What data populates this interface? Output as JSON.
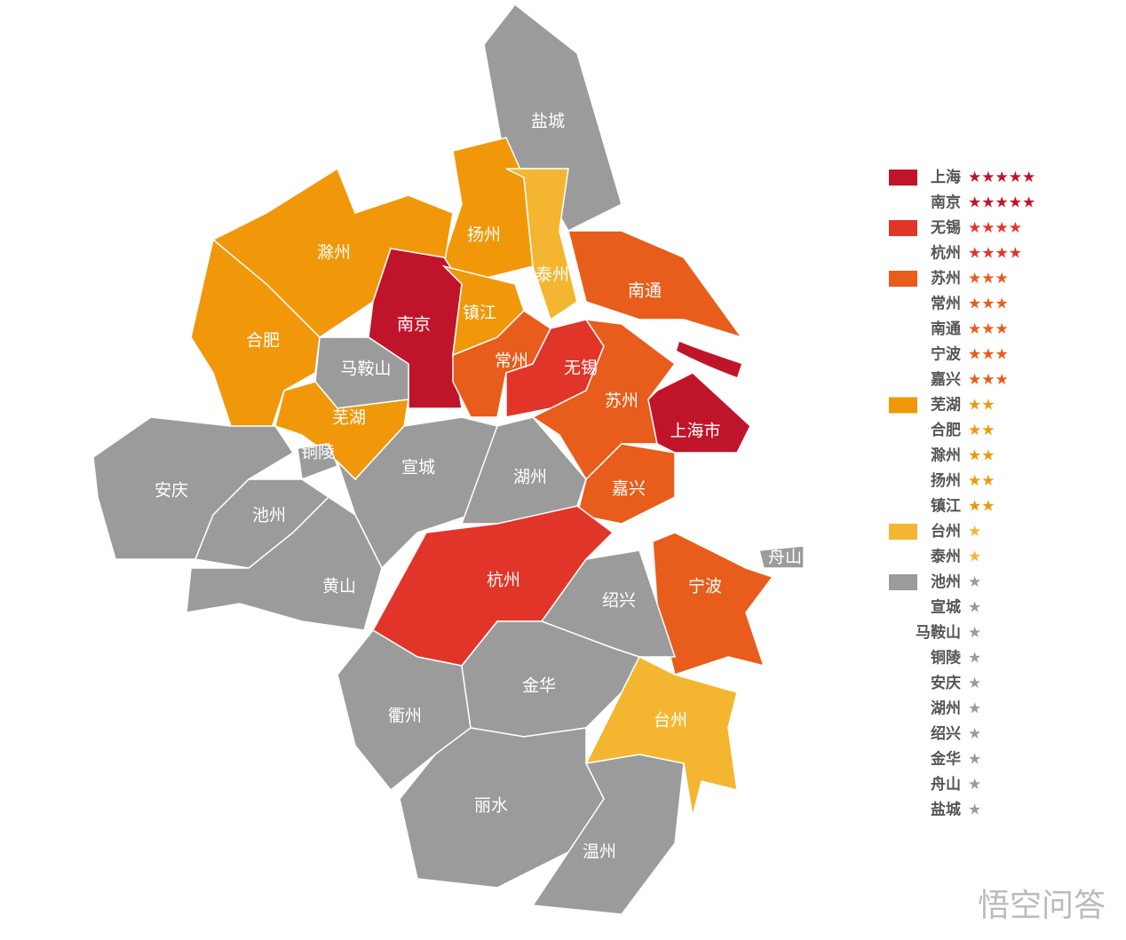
{
  "map": {
    "regions": [
      {
        "name": "盐城",
        "color": "#9b9b9b"
      },
      {
        "name": "扬州",
        "color": "#f0980a"
      },
      {
        "name": "泰州",
        "color": "#f4b630"
      },
      {
        "name": "南通",
        "color": "#e85d1c"
      },
      {
        "name": "滁州",
        "color": "#f0980a"
      },
      {
        "name": "合肥",
        "color": "#f0980a"
      },
      {
        "name": "南京",
        "color": "#c0142a"
      },
      {
        "name": "镇江",
        "color": "#f0980a"
      },
      {
        "name": "马鞍山",
        "color": "#9b9b9b"
      },
      {
        "name": "常州",
        "color": "#e85d1c"
      },
      {
        "name": "无锡",
        "color": "#e2352a"
      },
      {
        "name": "苏州",
        "color": "#e85d1c"
      },
      {
        "name": "上海市",
        "color": "#c0142a"
      },
      {
        "name": "芜湖",
        "color": "#f0980a"
      },
      {
        "name": "铜陵",
        "color": "#9b9b9b"
      },
      {
        "name": "宣城",
        "color": "#9b9b9b"
      },
      {
        "name": "湖州",
        "color": "#9b9b9b"
      },
      {
        "name": "嘉兴",
        "color": "#e85d1c"
      },
      {
        "name": "安庆",
        "color": "#9b9b9b"
      },
      {
        "name": "池州",
        "color": "#9b9b9b"
      },
      {
        "name": "黄山",
        "color": "#9b9b9b"
      },
      {
        "name": "杭州",
        "color": "#e2352a"
      },
      {
        "name": "宁波",
        "color": "#e85d1c"
      },
      {
        "name": "舟山",
        "color": "#9b9b9b"
      },
      {
        "name": "绍兴",
        "color": "#9b9b9b"
      },
      {
        "name": "衢州",
        "color": "#9b9b9b"
      },
      {
        "name": "金华",
        "color": "#9b9b9b"
      },
      {
        "name": "台州",
        "color": "#f4b630"
      },
      {
        "name": "丽水",
        "color": "#9b9b9b"
      },
      {
        "name": "温州",
        "color": "#9b9b9b"
      }
    ]
  },
  "legend": [
    {
      "color": "#c0142a",
      "entries": [
        {
          "name": "上海",
          "stars": "★★★★★"
        },
        {
          "name": "南京",
          "stars": "★★★★★"
        }
      ]
    },
    {
      "color": "#e2352a",
      "entries": [
        {
          "name": "无锡",
          "stars": "★★★★"
        },
        {
          "name": "杭州",
          "stars": "★★★★"
        }
      ]
    },
    {
      "color": "#e85d1c",
      "entries": [
        {
          "name": "苏州",
          "stars": "★★★"
        },
        {
          "name": "常州",
          "stars": "★★★"
        },
        {
          "name": "南通",
          "stars": "★★★"
        },
        {
          "name": "宁波",
          "stars": "★★★"
        },
        {
          "name": "嘉兴",
          "stars": "★★★"
        }
      ]
    },
    {
      "color": "#f0980a",
      "entries": [
        {
          "name": "芜湖",
          "stars": "★★"
        },
        {
          "name": "合肥",
          "stars": "★★"
        },
        {
          "name": "滁州",
          "stars": "★★"
        },
        {
          "name": "扬州",
          "stars": "★★"
        },
        {
          "name": "镇江",
          "stars": "★★"
        }
      ]
    },
    {
      "color": "#f4b630",
      "entries": [
        {
          "name": "台州",
          "stars": "★"
        },
        {
          "name": "泰州",
          "stars": "★"
        }
      ]
    },
    {
      "color": "#9b9b9b",
      "entries": [
        {
          "name": "池州",
          "stars": "★"
        },
        {
          "name": "宣城",
          "stars": "★"
        },
        {
          "name": "马鞍山",
          "stars": "★"
        },
        {
          "name": "铜陵",
          "stars": "★"
        },
        {
          "name": "安庆",
          "stars": "★"
        },
        {
          "name": "湖州",
          "stars": "★"
        },
        {
          "name": "绍兴",
          "stars": "★"
        },
        {
          "name": "金华",
          "stars": "★"
        },
        {
          "name": "舟山",
          "stars": "★"
        },
        {
          "name": "盐城",
          "stars": "★"
        }
      ]
    }
  ],
  "watermark": "悟空问答"
}
